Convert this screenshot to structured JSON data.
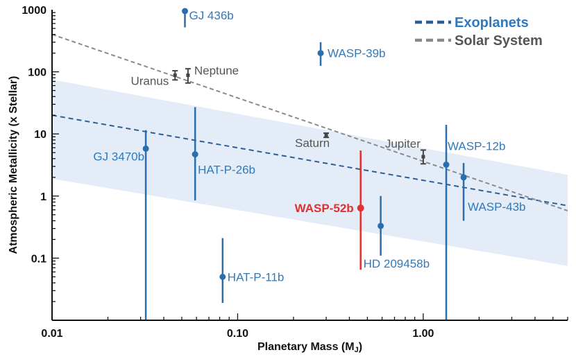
{
  "chart_data": {
    "type": "scatter",
    "x_scale": "log",
    "y_scale": "log",
    "xlim": [
      0.01,
      6
    ],
    "ylim": [
      0.01,
      1000
    ],
    "xlabel": "Planetary Mass (M",
    "xlabel_sub": "J",
    "xlabel_end": ")",
    "ylabel": "Atmospheric Metallicity (x Stellar)",
    "x_ticks": [
      {
        "value": 0.01,
        "label": "0.01"
      },
      {
        "value": 0.1,
        "label": "0.10"
      },
      {
        "value": 1,
        "label": "1.00"
      }
    ],
    "y_ticks": [
      {
        "value": 0.1,
        "label": "0.1"
      },
      {
        "value": 1,
        "label": "1"
      },
      {
        "value": 10,
        "label": "10"
      },
      {
        "value": 100,
        "label": "100"
      },
      {
        "value": 1000,
        "label": "1000"
      }
    ],
    "colors": {
      "exoplanet": "#2a6fad",
      "exoplanet_label": "#2f79bd",
      "solar": "#444444",
      "solar_label": "#555555",
      "highlight": "#e0302f",
      "band": "#e3ecf7",
      "exo_fit": "#2b5f96",
      "solar_fit": "#8a8a8a"
    },
    "legend": {
      "position": "top-right",
      "entries": [
        {
          "label": "Exoplanets",
          "style": "exo"
        },
        {
          "label": "Solar System",
          "style": "solar"
        }
      ]
    },
    "fits": {
      "exoplanets": {
        "x": [
          0.01,
          6
        ],
        "y": [
          20,
          0.7
        ]
      },
      "solar_system": {
        "x": [
          0.01,
          6
        ],
        "y": [
          400,
          0.58
        ]
      },
      "band_upper": {
        "x": [
          0.01,
          6
        ],
        "y": [
          75,
          2.2
        ]
      },
      "band_lower": {
        "x": [
          0.01,
          6
        ],
        "y": [
          1.9,
          0.075
        ]
      }
    },
    "series": [
      {
        "name": "Exoplanets",
        "points": [
          {
            "label": "GJ 436b",
            "x": 0.052,
            "y": 950,
            "ylo": 520,
            "yhi": 1000,
            "anchor": "start",
            "dx": 6,
            "dy": 12
          },
          {
            "label": "WASP-39b",
            "x": 0.28,
            "y": 200,
            "ylo": 125,
            "yhi": 300,
            "anchor": "start",
            "dx": 10,
            "dy": 6
          },
          {
            "label": "GJ 3470b",
            "x": 0.032,
            "y": 5.8,
            "ylo": 0.01,
            "yhi": 11.5,
            "anchor": "end",
            "dx": -2,
            "dy": 17
          },
          {
            "label": "HAT-P-26b",
            "x": 0.059,
            "y": 4.7,
            "ylo": 0.85,
            "yhi": 27,
            "anchor": "start",
            "dx": 4,
            "dy": 28
          },
          {
            "label": "HAT-P-11b",
            "x": 0.083,
            "y": 0.05,
            "ylo": 0.019,
            "yhi": 0.21,
            "anchor": "start",
            "dx": 7,
            "dy": 6
          },
          {
            "label": "HD 209458b",
            "x": 0.59,
            "y": 0.33,
            "ylo": 0.11,
            "yhi": 1.0,
            "anchor": "start",
            "dx": -25,
            "dy": 60
          },
          {
            "label": "WASP-12b",
            "x": 1.33,
            "y": 3.2,
            "ylo": 0.01,
            "yhi": 14,
            "anchor": "start",
            "dx": 2,
            "dy": -21
          },
          {
            "label": "WASP-43b",
            "x": 1.65,
            "y": 2.0,
            "ylo": 0.4,
            "yhi": 3.4,
            "anchor": "start",
            "dx": 6,
            "dy": 48
          }
        ]
      },
      {
        "name": "WASP-52b",
        "highlight": true,
        "points": [
          {
            "label": "WASP-52b",
            "x": 0.46,
            "y": 0.64,
            "ylo": 0.065,
            "yhi": 5.4,
            "anchor": "end",
            "dx": -10,
            "dy": 6
          }
        ]
      },
      {
        "name": "Solar System",
        "points": [
          {
            "label": "Uranus",
            "x": 0.046,
            "y": 88,
            "ylo": 74,
            "yhi": 104,
            "anchor": "end",
            "dx": -9,
            "dy": 14
          },
          {
            "label": "Neptune",
            "x": 0.054,
            "y": 88,
            "ylo": 66,
            "yhi": 112,
            "anchor": "start",
            "dx": 9,
            "dy": -1
          },
          {
            "label": "Saturn",
            "x": 0.3,
            "y": 9.5,
            "ylo": 8.8,
            "yhi": 10.3,
            "anchor": "middle",
            "dx": -20,
            "dy": 17
          },
          {
            "label": "Jupiter",
            "x": 1.0,
            "y": 4.3,
            "ylo": 3.3,
            "yhi": 5.5,
            "anchor": "end",
            "dx": -4,
            "dy": -13
          }
        ]
      }
    ]
  }
}
